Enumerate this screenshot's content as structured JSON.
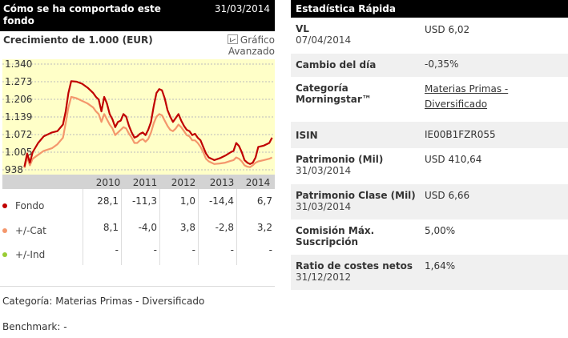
{
  "left_header": {
    "title": "Cómo se ha comportado este fondo",
    "date": "31/03/2014"
  },
  "right_header": {
    "title": "Estadística Rápida"
  },
  "growth_title": "Crecimiento de 1.000 (EUR)",
  "advanced_chart": {
    "line1": "Gráfico",
    "line2": "Avanzado",
    "icon": "chart-icon"
  },
  "colors": {
    "fondo": "#c00000",
    "cat": "#f4976c",
    "ind": "#99cc33",
    "plot_bg": "#ffffc8",
    "axis_band": "#d3d3d3"
  },
  "chart_data": {
    "type": "line",
    "yticks": [
      "1.340",
      "1.273",
      "1.206",
      "1.139",
      "1.072",
      "1.005",
      "938"
    ],
    "ylim": [
      938,
      1340
    ],
    "xticks": [
      "2010",
      "2011",
      "2012",
      "2013",
      "2014"
    ],
    "series": [
      {
        "name": "Fondo",
        "color": "#c00000",
        "x": [
          2009.75,
          2009.8,
          2009.85,
          2009.9,
          2010.0,
          2010.1,
          2010.25,
          2010.35,
          2010.45,
          2010.5,
          2010.55,
          2010.6,
          2010.7,
          2010.8,
          2010.9,
          2011.0,
          2011.05,
          2011.1,
          2011.15,
          2011.2,
          2011.25,
          2011.3,
          2011.35,
          2011.4,
          2011.45,
          2011.5,
          2011.55,
          2011.6,
          2011.65,
          2011.7,
          2011.75,
          2011.8,
          2011.85,
          2011.9,
          2011.95,
          2012.0,
          2012.05,
          2012.1,
          2012.15,
          2012.2,
          2012.25,
          2012.3,
          2012.35,
          2012.4,
          2012.45,
          2012.5,
          2012.55,
          2012.6,
          2012.65,
          2012.7,
          2012.75,
          2012.8,
          2012.85,
          2012.9,
          2012.95,
          2013.0,
          2013.05,
          2013.1,
          2013.15,
          2013.2,
          2013.3,
          2013.4,
          2013.5,
          2013.55,
          2013.6,
          2013.65,
          2013.7,
          2013.75,
          2013.8,
          2013.85,
          2013.9,
          2013.95,
          2014.0,
          2014.1,
          2014.2,
          2014.25
        ],
        "values": [
          950,
          1000,
          965,
          1005,
          1040,
          1065,
          1080,
          1085,
          1110,
          1160,
          1230,
          1275,
          1273,
          1265,
          1250,
          1230,
          1215,
          1205,
          1160,
          1215,
          1190,
          1150,
          1130,
          1100,
          1120,
          1125,
          1150,
          1140,
          1105,
          1080,
          1060,
          1065,
          1075,
          1080,
          1070,
          1090,
          1120,
          1180,
          1230,
          1245,
          1240,
          1210,
          1165,
          1140,
          1120,
          1135,
          1150,
          1125,
          1105,
          1090,
          1085,
          1070,
          1075,
          1060,
          1050,
          1025,
          1000,
          985,
          980,
          975,
          982,
          992,
          1005,
          1010,
          1040,
          1028,
          1005,
          975,
          965,
          960,
          965,
          985,
          1025,
          1030,
          1040,
          1060
        ]
      },
      {
        "name": "+/-Cat",
        "color": "#f4976c",
        "x": [
          2009.75,
          2009.8,
          2009.85,
          2009.9,
          2010.0,
          2010.1,
          2010.25,
          2010.35,
          2010.45,
          2010.5,
          2010.55,
          2010.6,
          2010.7,
          2010.8,
          2010.9,
          2011.0,
          2011.05,
          2011.1,
          2011.15,
          2011.2,
          2011.25,
          2011.3,
          2011.35,
          2011.4,
          2011.45,
          2011.5,
          2011.55,
          2011.6,
          2011.65,
          2011.7,
          2011.75,
          2011.8,
          2011.85,
          2011.9,
          2011.95,
          2012.0,
          2012.05,
          2012.1,
          2012.15,
          2012.2,
          2012.25,
          2012.3,
          2012.35,
          2012.4,
          2012.45,
          2012.5,
          2012.55,
          2012.6,
          2012.65,
          2012.7,
          2012.75,
          2012.8,
          2012.85,
          2012.9,
          2012.95,
          2013.0,
          2013.05,
          2013.1,
          2013.15,
          2013.2,
          2013.3,
          2013.4,
          2013.5,
          2013.55,
          2013.6,
          2013.65,
          2013.7,
          2013.75,
          2013.8,
          2013.85,
          2013.9,
          2013.95,
          2014.0,
          2014.1,
          2014.2,
          2014.25
        ],
        "values": [
          945,
          985,
          955,
          980,
          995,
          1010,
          1020,
          1035,
          1060,
          1115,
          1175,
          1215,
          1210,
          1200,
          1190,
          1175,
          1160,
          1150,
          1120,
          1150,
          1130,
          1110,
          1095,
          1070,
          1080,
          1090,
          1100,
          1095,
          1075,
          1060,
          1040,
          1040,
          1050,
          1055,
          1045,
          1055,
          1080,
          1115,
          1140,
          1150,
          1145,
          1125,
          1105,
          1090,
          1085,
          1095,
          1110,
          1100,
          1085,
          1070,
          1065,
          1050,
          1050,
          1040,
          1025,
          1005,
          980,
          970,
          965,
          960,
          962,
          965,
          972,
          975,
          985,
          980,
          970,
          955,
          950,
          948,
          955,
          965,
          970,
          975,
          980,
          985
        ]
      }
    ],
    "rows": [
      {
        "label": "Fondo",
        "color": "#c00000",
        "values": [
          "28,1",
          "-11,3",
          "1,0",
          "-14,4",
          "6,7"
        ]
      },
      {
        "label": "+/-Cat",
        "color": "#f4976c",
        "values": [
          "8,1",
          "-4,0",
          "3,8",
          "-2,8",
          "3,2"
        ]
      },
      {
        "label": "+/-Ind",
        "color": "#99cc33",
        "values": [
          "-",
          "-",
          "-",
          "-",
          "-"
        ]
      }
    ]
  },
  "footer": {
    "category": "Categoría: Materias Primas - Diversificado",
    "benchmark": "Benchmark: -"
  },
  "stats": {
    "vl": {
      "label": "VL",
      "date": "07/04/2014",
      "value": "USD 6,02"
    },
    "cambio": {
      "label": "Cambio del día",
      "value": "-0,35%"
    },
    "categoria": {
      "label1": "Categoría",
      "label2": "Morningstar™",
      "value1": "Materias Primas -",
      "value2": "Diversificado"
    },
    "isin": {
      "label": "ISIN",
      "value": "IE00B1FZR055"
    },
    "patrimonio": {
      "label": "Patrimonio (Mil)",
      "date": "31/03/2014",
      "value": "USD 410,64"
    },
    "patrimonio_clase": {
      "label": "Patrimonio Clase (Mil)",
      "date": "31/03/2014",
      "value": "USD 6,66"
    },
    "comision": {
      "label1": "Comisión Máx.",
      "label2": "Suscripción",
      "value": "5,00%"
    },
    "ratio": {
      "label": "Ratio de costes netos",
      "date": "31/12/2012",
      "value": "1,64%"
    }
  }
}
